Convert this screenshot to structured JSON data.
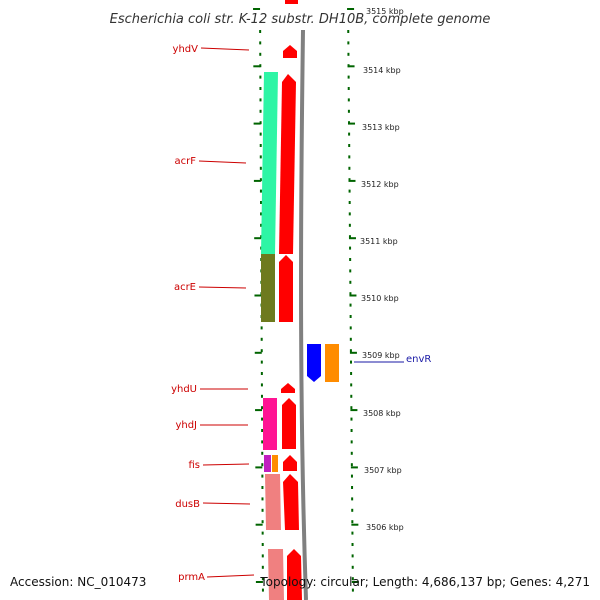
{
  "title": "Escherichia coli str. K-12 substr. DH10B, complete genome",
  "footer": {
    "accession": "Accession: NC_010473",
    "topology": "Topology: circular; Length: 4,686,137 bp; Genes: 4,271"
  },
  "scale_ticks": [
    "3515 kbp",
    "3514 kbp",
    "3513 kbp",
    "3512 kbp",
    "3511 kbp",
    "3510 kbp",
    "3509 kbp",
    "3508 kbp",
    "3507 kbp",
    "3506 kbp"
  ],
  "genes_left": [
    "yhdV",
    "acrF",
    "acrE",
    "yhdU",
    "yhdJ",
    "fis",
    "dusB",
    "prmA"
  ],
  "genes_right": [
    "envR"
  ],
  "colors": {
    "cds": "#ff0000",
    "acrF": "#2ef5a5",
    "acrE": "#6e7a1e",
    "yhdJ": "#ff1493",
    "fis_a": "#c020c0",
    "fis_b": "#ff8c00",
    "dusB": "#f08080",
    "prmA": "#f08080",
    "envR_cds": "#0000ff",
    "envR_b": "#ff8c00",
    "label_left": "#cc0000",
    "label_right": "#1a1aa6",
    "backbone": "#808080",
    "ticks": "#006400"
  }
}
